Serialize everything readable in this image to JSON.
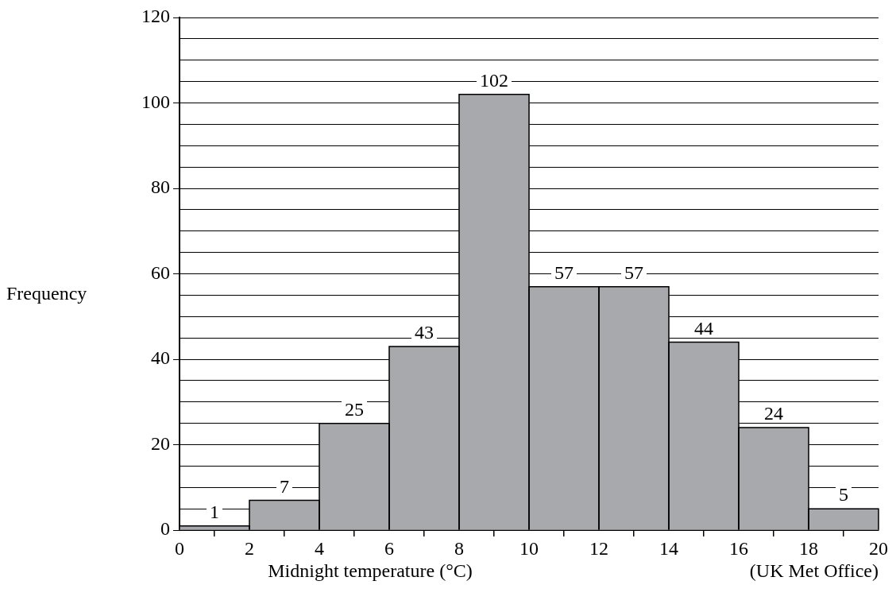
{
  "chart_data": {
    "type": "histogram",
    "xlabel": "Midnight temperature (°C)",
    "ylabel": "Frequency",
    "bins": [
      0,
      2,
      4,
      6,
      8,
      10,
      12,
      14,
      16,
      18,
      20
    ],
    "values": [
      1,
      7,
      25,
      43,
      102,
      57,
      57,
      44,
      24,
      5
    ],
    "color": "#a7a9ac",
    "data_labels": true,
    "grid": "y",
    "xlim": [
      0,
      20
    ],
    "xticks": [
      0,
      2,
      4,
      6,
      8,
      10,
      12,
      14,
      16,
      18,
      20
    ],
    "ylim": [
      0,
      120
    ],
    "yticks": [
      0,
      {
        "value": 5,
        "label": null
      },
      {
        "value": 10,
        "label": null
      },
      {
        "value": 15,
        "label": null
      },
      20,
      {
        "value": 25,
        "label": null
      },
      {
        "value": 30,
        "label": null
      },
      {
        "value": 35,
        "label": null
      },
      40,
      {
        "value": 45,
        "label": null
      },
      {
        "value": 50,
        "label": null
      },
      {
        "value": 55,
        "label": null
      },
      60,
      {
        "value": 65,
        "label": null
      },
      {
        "value": 70,
        "label": null
      },
      {
        "value": 75,
        "label": null
      },
      80,
      {
        "value": 85,
        "label": null
      },
      {
        "value": 90,
        "label": null
      },
      {
        "value": 95,
        "label": null
      },
      100,
      {
        "value": 105,
        "label": null
      },
      {
        "value": 110,
        "label": null
      },
      {
        "value": 115,
        "label": null
      },
      120
    ],
    "annotations": [
      "(UK Met Office)"
    ]
  }
}
